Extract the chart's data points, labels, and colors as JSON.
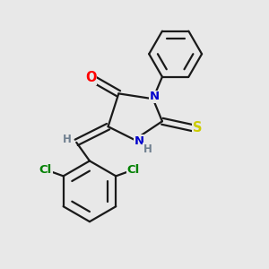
{
  "background_color": "#e8e8e8",
  "bond_color": "#1a1a1a",
  "atom_colors": {
    "O": "#ff0000",
    "N": "#0000cc",
    "S": "#cccc00",
    "Cl": "#008000",
    "H_label": "#708090",
    "C": "#1a1a1a"
  },
  "figsize": [
    3.0,
    3.0
  ],
  "dpi": 100,
  "lw": 1.6,
  "fs": 9.5
}
